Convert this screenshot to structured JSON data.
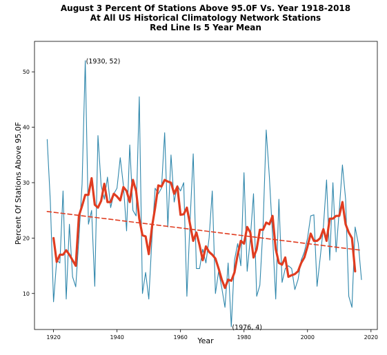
{
  "chart_data": {
    "type": "line",
    "title_lines": [
      "August 3 Percent Of Stations Above 95.0F Vs. Year 1918-2018",
      "At All US Historical Climatology Network Stations",
      "Red Line Is 5 Year Mean"
    ],
    "xlabel": "Year",
    "ylabel": "Percent Of Stations Above 95.0F",
    "xlim": [
      1914,
      2022
    ],
    "ylim": [
      3.5,
      55.5
    ],
    "xticks": [
      1920,
      1940,
      1960,
      1980,
      2000,
      2020
    ],
    "yticks": [
      10,
      20,
      30,
      40,
      50
    ],
    "grid": false,
    "series": [
      {
        "kind": "line",
        "color": "#2e86ab",
        "x": [
          1918,
          1919,
          1920,
          1921,
          1922,
          1923,
          1924,
          1925,
          1926,
          1927,
          1928,
          1929,
          1930,
          1931,
          1932,
          1933,
          1934,
          1935,
          1936,
          1937,
          1938,
          1939,
          1940,
          1941,
          1942,
          1943,
          1944,
          1945,
          1946,
          1947,
          1948,
          1949,
          1950,
          1951,
          1952,
          1953,
          1954,
          1955,
          1956,
          1957,
          1958,
          1959,
          1960,
          1961,
          1962,
          1963,
          1964,
          1965,
          1966,
          1967,
          1968,
          1969,
          1970,
          1971,
          1972,
          1973,
          1974,
          1975,
          1976,
          1977,
          1978,
          1979,
          1980,
          1981,
          1982,
          1983,
          1984,
          1985,
          1986,
          1987,
          1988,
          1989,
          1990,
          1991,
          1992,
          1993,
          1994,
          1995,
          1996,
          1997,
          1998,
          1999,
          2000,
          2001,
          2002,
          2003,
          2004,
          2005,
          2006,
          2007,
          2008,
          2009,
          2010,
          2011,
          2012,
          2013,
          2014,
          2015,
          2016,
          2017
        ],
        "y": [
          37.8,
          26.5,
          8.5,
          16.0,
          15.5,
          28.5,
          9.0,
          22.5,
          13.0,
          11.2,
          20.0,
          29.8,
          52.0,
          22.5,
          25.0,
          11.3,
          38.5,
          29.5,
          27.0,
          31.0,
          25.5,
          28.0,
          29.0,
          34.5,
          29.5,
          21.3,
          36.8,
          25.0,
          24.0,
          45.5,
          10.0,
          13.8,
          9.0,
          20.0,
          29.0,
          28.0,
          29.0,
          39.0,
          22.0,
          35.0,
          26.5,
          29.5,
          28.5,
          30.0,
          9.5,
          23.0,
          35.2,
          14.5,
          14.5,
          18.0,
          15.5,
          20.0,
          28.5,
          10.0,
          14.0,
          11.0,
          7.5,
          15.5,
          4.0,
          16.0,
          19.0,
          15.0,
          31.8,
          14.0,
          20.0,
          28.0,
          9.5,
          11.5,
          22.0,
          39.5,
          31.0,
          20.5,
          9.0,
          27.0,
          12.0,
          14.5,
          15.0,
          14.5,
          10.7,
          12.5,
          16.0,
          17.5,
          20.0,
          24.0,
          24.2,
          11.3,
          16.5,
          22.0,
          30.5,
          16.0,
          30.0,
          17.5,
          25.0,
          33.2,
          27.0,
          9.5,
          7.5,
          22.0,
          19.0,
          12.5
        ]
      },
      {
        "kind": "line",
        "color": "#e03c20",
        "label": "5 Year Mean",
        "x": [
          1920,
          1921,
          1922,
          1923,
          1924,
          1925,
          1926,
          1927,
          1928,
          1929,
          1930,
          1931,
          1932,
          1933,
          1934,
          1935,
          1936,
          1937,
          1938,
          1939,
          1940,
          1941,
          1942,
          1943,
          1944,
          1945,
          1946,
          1947,
          1948,
          1949,
          1950,
          1951,
          1952,
          1953,
          1954,
          1955,
          1956,
          1957,
          1958,
          1959,
          1960,
          1961,
          1962,
          1963,
          1964,
          1965,
          1966,
          1967,
          1968,
          1969,
          1970,
          1971,
          1972,
          1973,
          1974,
          1975,
          1976,
          1977,
          1978,
          1979,
          1980,
          1981,
          1982,
          1983,
          1984,
          1985,
          1986,
          1987,
          1988,
          1989,
          1990,
          1991,
          1992,
          1993,
          1994,
          1995,
          1996,
          1997,
          1998,
          1999,
          2000,
          2001,
          2002,
          2003,
          2004,
          2005,
          2006,
          2007,
          2008,
          2009,
          2010,
          2011,
          2012,
          2013,
          2014,
          2015
        ],
        "y": [
          20.0,
          15.7,
          17.0,
          17.0,
          17.8,
          17.0,
          16.0,
          15.0,
          24.0,
          25.8,
          27.8,
          27.8,
          30.8,
          26.0,
          25.5,
          26.7,
          29.8,
          26.5,
          26.5,
          28.0,
          27.5,
          26.8,
          29.2,
          28.5,
          26.5,
          30.5,
          28.5,
          23.5,
          20.5,
          20.3,
          17.1,
          22.0,
          25.5,
          29.5,
          29.3,
          30.5,
          30.2,
          30.0,
          28.0,
          29.3,
          24.2,
          24.3,
          25.5,
          22.5,
          19.5,
          21.0,
          18.7,
          16.0,
          18.5,
          17.5,
          17.0,
          16.3,
          14.5,
          12.5,
          11.0,
          12.5,
          12.3,
          13.8,
          17.0,
          19.5,
          19.0,
          22.0,
          21.0,
          16.5,
          18.0,
          21.5,
          21.5,
          22.8,
          22.5,
          24.0,
          18.0,
          15.5,
          15.2,
          16.5,
          13.0,
          13.3,
          13.5,
          14.0,
          15.5,
          16.5,
          18.5,
          20.8,
          19.5,
          19.5,
          20.0,
          21.6,
          19.5,
          23.5,
          23.5,
          24.0,
          24.0,
          26.5,
          22.5,
          21.0,
          20.0,
          14.0
        ]
      },
      {
        "kind": "trend",
        "color": "#e03c20",
        "dashed": true,
        "x": [
          1918,
          2017
        ],
        "y": [
          24.8,
          17.8
        ]
      }
    ],
    "annotations": [
      {
        "text": "(1930, 52)",
        "x": 1930,
        "y": 52
      },
      {
        "text": "(1976, 4)",
        "x": 1976,
        "y": 4
      }
    ]
  }
}
